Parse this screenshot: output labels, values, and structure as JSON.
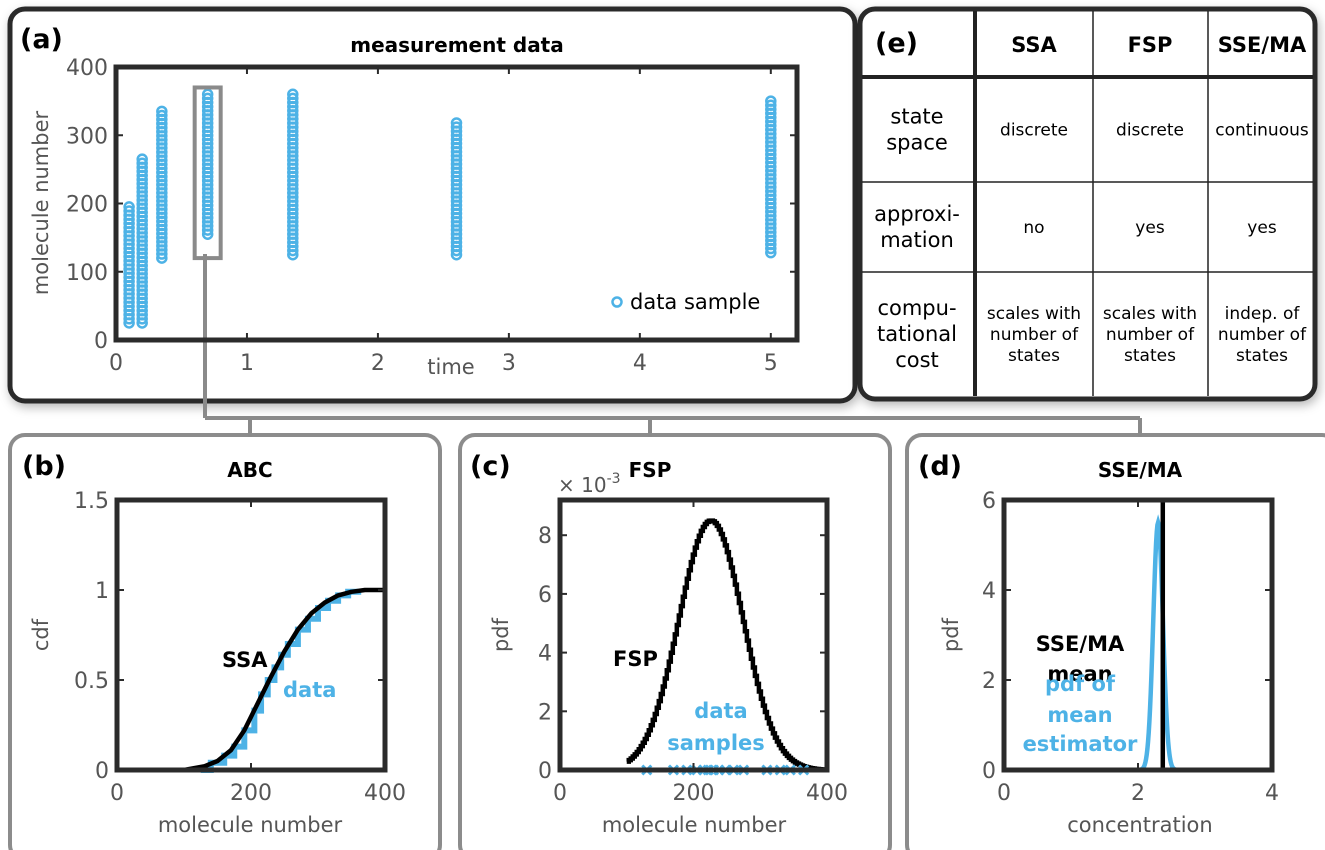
{
  "colors": {
    "data": "#4db2e6",
    "model": "#000000",
    "frame": "#2b2b2b",
    "bracket": "#8a8a8a",
    "sub_frame": "#8c8c8c"
  },
  "panels": {
    "a": "(a)",
    "b": "(b)",
    "c": "(c)",
    "d": "(d)",
    "e": "(e)"
  },
  "chart_data": [
    {
      "id": "a",
      "type": "scatter",
      "title": "measurement data",
      "xlabel": "time",
      "ylabel": "molecule number",
      "xlim": [
        0,
        5.2
      ],
      "ylim": [
        0,
        400
      ],
      "xticks": [
        "0",
        "1",
        "2",
        "3",
        "4",
        "5"
      ],
      "yticks": [
        "0",
        "100",
        "200",
        "300",
        "400"
      ],
      "legend": {
        "entry": "data sample",
        "position": "bottom-right"
      },
      "series": [
        {
          "name": "data sample",
          "x": [
            0.1,
            0.2,
            0.35,
            0.7,
            1.35,
            2.6,
            5.0
          ],
          "ymin": [
            25,
            25,
            120,
            155,
            125,
            125,
            128
          ],
          "ymax": [
            195,
            265,
            335,
            360,
            360,
            318,
            350
          ]
        }
      ],
      "highlight": {
        "x": 0.7,
        "ymin": 120,
        "ymax": 370
      }
    },
    {
      "id": "b",
      "type": "line",
      "title": "ABC",
      "xlabel": "molecule number",
      "ylabel": "cdf",
      "xlim": [
        0,
        400
      ],
      "ylim": [
        0,
        1.5
      ],
      "xticks": [
        "0",
        "200",
        "400"
      ],
      "yticks": [
        "0",
        "0.5",
        "1",
        "1.5"
      ],
      "annotations": {
        "model": "SSA",
        "data": "data"
      },
      "series": [
        {
          "name": "SSA",
          "x": [
            0,
            100,
            130,
            150,
            170,
            190,
            210,
            230,
            250,
            270,
            290,
            310,
            330,
            350,
            370,
            400
          ],
          "y": [
            0,
            0.0,
            0.02,
            0.05,
            0.11,
            0.22,
            0.37,
            0.52,
            0.66,
            0.78,
            0.87,
            0.93,
            0.97,
            0.99,
            1.0,
            1.0
          ]
        },
        {
          "name": "data",
          "x": [
            125,
            140,
            160,
            175,
            190,
            205,
            215,
            225,
            235,
            245,
            255,
            270,
            285,
            300,
            315,
            330,
            345,
            360
          ],
          "y": [
            0,
            0.04,
            0.08,
            0.13,
            0.22,
            0.33,
            0.42,
            0.5,
            0.57,
            0.64,
            0.7,
            0.78,
            0.84,
            0.9,
            0.94,
            0.97,
            0.99,
            1.0
          ]
        }
      ]
    },
    {
      "id": "c",
      "type": "line",
      "title": "FSP",
      "xlabel": "molecule number",
      "ylabel": "pdf",
      "exponent": "× 10",
      "exponent_power": "-3",
      "xlim": [
        0,
        400
      ],
      "ylim": [
        0,
        9.2
      ],
      "xticks": [
        "0",
        "200",
        "400"
      ],
      "yticks": [
        "0",
        "2",
        "4",
        "6",
        "8"
      ],
      "annotations": {
        "model": "FSP",
        "data": [
          "data",
          "samples"
        ]
      },
      "series": [
        {
          "name": "FSP",
          "peak_x": 225,
          "peak_y": 8.5,
          "sd": 48
        },
        {
          "name": "data samples",
          "x": [
            130,
            170,
            190,
            205,
            215,
            222,
            230,
            238,
            248,
            260,
            275,
            310,
            330,
            345,
            365
          ],
          "y": 0
        }
      ]
    },
    {
      "id": "d",
      "type": "line",
      "title": "SSE/MA",
      "xlabel": "concentration",
      "ylabel": "pdf",
      "xlim": [
        0,
        4
      ],
      "ylim": [
        0,
        6
      ],
      "xticks": [
        "0",
        "2",
        "4"
      ],
      "yticks": [
        "0",
        "2",
        "4",
        "6"
      ],
      "annotations": {
        "model": [
          "SSE/MA",
          "mean"
        ],
        "data": [
          "pdf of",
          "mean",
          "estimator"
        ]
      },
      "series": [
        {
          "name": "SSE/MA mean",
          "x": 2.37
        },
        {
          "name": "pdf of mean estimator",
          "peak_x": 2.3,
          "peak_y": 5.5,
          "sd": 0.072
        }
      ]
    },
    {
      "id": "e",
      "type": "table",
      "columns": [
        "SSA",
        "FSP",
        "SSE/MA"
      ],
      "rows": [
        {
          "label": [
            "state",
            "space"
          ],
          "cells": [
            [
              "discrete"
            ],
            [
              "discrete"
            ],
            [
              "continuous"
            ]
          ]
        },
        {
          "label": [
            "approxi-",
            "mation"
          ],
          "cells": [
            [
              "no"
            ],
            [
              "yes"
            ],
            [
              "yes"
            ]
          ]
        },
        {
          "label": [
            "compu-",
            "tational",
            "cost"
          ],
          "cells": [
            [
              "scales with",
              "number of",
              "states"
            ],
            [
              "scales with",
              "number of",
              "states"
            ],
            [
              "indep. of",
              "number of",
              "states"
            ]
          ]
        }
      ]
    }
  ]
}
